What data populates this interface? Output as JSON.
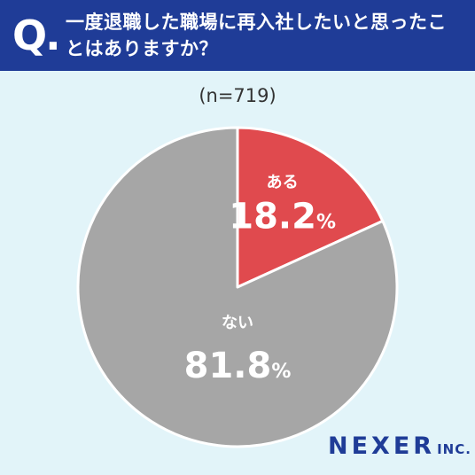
{
  "header": {
    "q_mark": "Q.",
    "question": "一度退職した職場に再入社したいと思ったことはありますか？"
  },
  "sample_size": "(n=719)",
  "brand": {
    "name": "NEXER",
    "suffix": "INC."
  },
  "colors": {
    "header_bg": "#1f3c97",
    "slice_yes": "#e04a4e",
    "slice_no": "#a6a6a6",
    "bg": "#e2f4f9"
  },
  "chart_data": {
    "type": "pie",
    "slices": [
      {
        "label": "ある",
        "value": 18.2,
        "value_label": "18.2",
        "unit": "%",
        "color": "#e04a4e"
      },
      {
        "label": "ない",
        "value": 81.8,
        "value_label": "81.8",
        "unit": "%",
        "color": "#a6a6a6"
      }
    ],
    "start": "12 o'clock",
    "direction": "clockwise"
  }
}
